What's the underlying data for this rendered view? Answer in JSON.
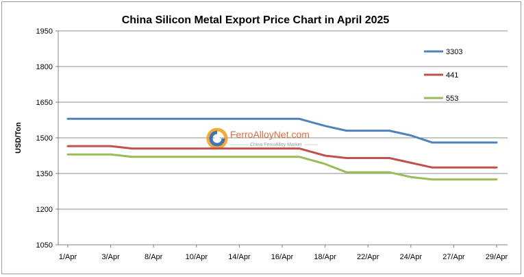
{
  "chart_data": {
    "type": "line",
    "title": "China Silicon Metal Export Price Chart in April 2025",
    "xlabel": "",
    "ylabel": "USD/Ton",
    "categories": [
      "1/Apr",
      "3/Apr",
      "8/Apr",
      "10/Apr",
      "14/Apr",
      "16/Apr",
      "18/Apr",
      "22/Apr",
      "24/Apr",
      "27/Apr",
      "29/Apr"
    ],
    "ylim": [
      1050,
      1950
    ],
    "yticks": [
      1050,
      1200,
      1350,
      1500,
      1650,
      1800,
      1950
    ],
    "grid": true,
    "legend_position": "right",
    "series": [
      {
        "name": "3303",
        "color": "#4f81bd",
        "x": [
          0,
          1,
          2,
          3,
          4,
          5,
          5.4,
          6,
          6.5,
          7.5,
          8,
          8.5,
          10
        ],
        "values": [
          1580,
          1580,
          1580,
          1580,
          1580,
          1580,
          1580,
          1550,
          1530,
          1530,
          1510,
          1480,
          1480
        ]
      },
      {
        "name": "441",
        "color": "#c0504d",
        "x": [
          0,
          1,
          1.5,
          2,
          3,
          4,
          5,
          5.4,
          6,
          6.5,
          7.5,
          8,
          8.5,
          10
        ],
        "values": [
          1465,
          1465,
          1455,
          1455,
          1455,
          1455,
          1455,
          1455,
          1425,
          1415,
          1415,
          1395,
          1375,
          1375
        ]
      },
      {
        "name": "553",
        "color": "#9bbb59",
        "x": [
          0,
          1,
          1.5,
          2,
          3,
          4,
          5,
          5.4,
          6,
          6.5,
          7.5,
          8,
          8.5,
          10
        ],
        "values": [
          1430,
          1430,
          1420,
          1420,
          1420,
          1420,
          1420,
          1420,
          1390,
          1355,
          1355,
          1335,
          1325,
          1325
        ]
      }
    ]
  },
  "watermark": {
    "brand": "FerroAlloyNet.com",
    "tagline": "China FerroAlloy Market",
    "logo_colors": [
      "#f39c12",
      "#1f5fa8"
    ]
  }
}
